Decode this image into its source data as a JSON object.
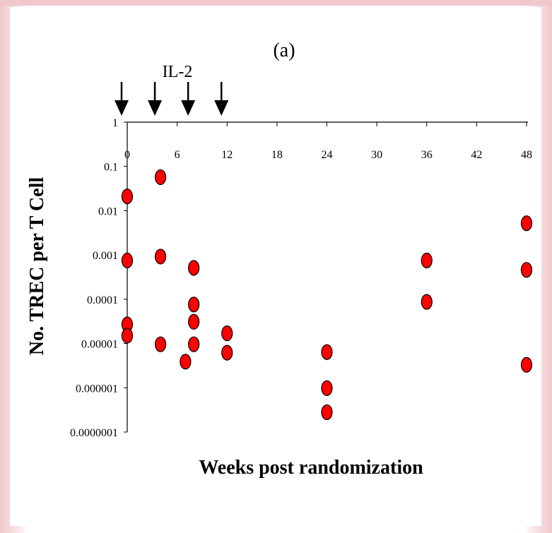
{
  "chart_data": {
    "type": "scatter",
    "title": "(a)",
    "xlabel": "Weeks post randomization",
    "ylabel": "No. TREC per T Cell",
    "y_scale": "log",
    "ylim": [
      1e-07,
      1
    ],
    "xlim": [
      0,
      48
    ],
    "x_ticks": [
      "0",
      "6",
      "12",
      "18",
      "24",
      "30",
      "36",
      "42",
      "48"
    ],
    "x_tick_values": [
      0,
      6,
      12,
      18,
      24,
      30,
      36,
      42,
      48
    ],
    "y_ticks": [
      "1",
      "0.1",
      "0.01",
      "0.001",
      "0.0001",
      "0.00001",
      "0.000001",
      "0.0000001"
    ],
    "y_tick_values": [
      1,
      0.1,
      0.01,
      0.001,
      0.0001,
      1e-05,
      1e-06,
      1e-07
    ],
    "annotation": {
      "text": "IL-2",
      "arrow_weeks": [
        0,
        4,
        8,
        12
      ]
    },
    "marker_color": "#ff0000",
    "marker_edge_color": "#000000",
    "points": [
      {
        "x": 0,
        "y": 0.021
      },
      {
        "x": 0,
        "y": 0.00075
      },
      {
        "x": 0,
        "y": 2.7e-05
      },
      {
        "x": 0,
        "y": 1.5e-05
      },
      {
        "x": 4,
        "y": 0.057
      },
      {
        "x": 4,
        "y": 0.00092
      },
      {
        "x": 4,
        "y": 9.6e-06
      },
      {
        "x": 7,
        "y": 3.9e-06
      },
      {
        "x": 8,
        "y": 0.00051
      },
      {
        "x": 8,
        "y": 7.6e-05
      },
      {
        "x": 8,
        "y": 3.1e-05
      },
      {
        "x": 8,
        "y": 9.6e-06
      },
      {
        "x": 12,
        "y": 1.7e-05
      },
      {
        "x": 12,
        "y": 6.2e-06
      },
      {
        "x": 24,
        "y": 6.4e-06
      },
      {
        "x": 24,
        "y": 9.8e-07
      },
      {
        "x": 24,
        "y": 2.8e-07
      },
      {
        "x": 36,
        "y": 0.00075
      },
      {
        "x": 36,
        "y": 8.7e-05
      },
      {
        "x": 48,
        "y": 0.0052
      },
      {
        "x": 48,
        "y": 0.00046
      },
      {
        "x": 48,
        "y": 3.3e-06
      }
    ]
  }
}
